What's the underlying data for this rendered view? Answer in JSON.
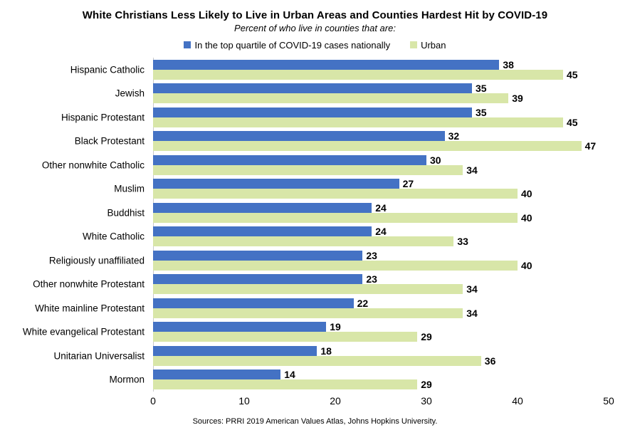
{
  "title": "White Christians Less Likely to Live in Urban Areas and Counties Hardest Hit by COVID-19",
  "subtitle": "Percent of who live in counties that are:",
  "source": "Sources: PRRI 2019 American Values Atlas, Johns Hopkins University.",
  "colors": {
    "covid_bar": "#4472C4",
    "urban_bar": "#D8E6A8",
    "axis_line": "#C9C9C9",
    "text": "#000000"
  },
  "legend": [
    {
      "label": "In the top quartile of COVID-19 cases nationally",
      "color": "#4472C4"
    },
    {
      "label": "Urban",
      "color": "#D8E6A8"
    }
  ],
  "chart_data": {
    "type": "bar",
    "orientation": "horizontal",
    "title": "White Christians Less Likely to Live in Urban Areas and Counties Hardest Hit by COVID-19",
    "subtitle": "Percent of who live in counties that are:",
    "categories": [
      "Hispanic Catholic",
      "Jewish",
      "Hispanic Protestant",
      "Black Protestant",
      "Other nonwhite Catholic",
      "Muslim",
      "Buddhist",
      "White Catholic",
      "Religiously unaffiliated",
      "Other nonwhite Protestant",
      "White mainline Protestant",
      "White evangelical Protestant",
      "Unitarian Universalist",
      "Mormon"
    ],
    "series": [
      {
        "name": "In the top quartile of COVID-19 cases nationally",
        "color": "#4472C4",
        "values": [
          38,
          35,
          35,
          32,
          30,
          27,
          24,
          24,
          23,
          23,
          22,
          19,
          18,
          14
        ]
      },
      {
        "name": "Urban",
        "color": "#D8E6A8",
        "values": [
          45,
          39,
          45,
          47,
          34,
          40,
          40,
          33,
          40,
          34,
          34,
          29,
          36,
          29
        ]
      }
    ],
    "xlabel": "",
    "ylabel": "",
    "xlim": [
      0,
      50
    ],
    "xticks": [
      0,
      10,
      20,
      30,
      40,
      50
    ],
    "grid": false,
    "legend_position": "top",
    "value_labels": true
  }
}
